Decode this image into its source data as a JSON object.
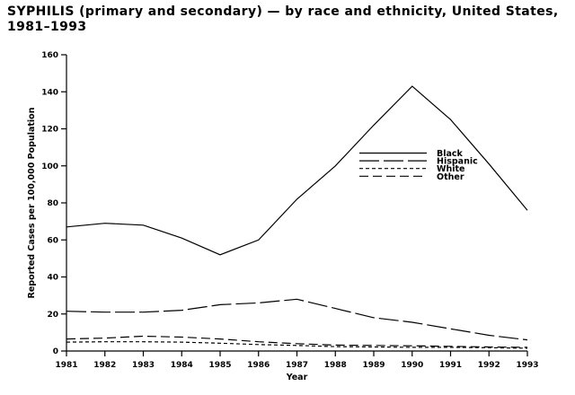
{
  "title": {
    "line1": "SYPHILIS (primary and secondary) — by race and ethnicity, United States,",
    "line2": "1981–1993"
  },
  "chart_data": {
    "type": "line",
    "title": "SYPHILIS (primary and secondary) — by race and ethnicity, United States, 1981–1993",
    "xlabel": "Year",
    "ylabel": "Reported Cases per 100,000 Population",
    "x": [
      1981,
      1982,
      1983,
      1984,
      1985,
      1986,
      1987,
      1988,
      1989,
      1990,
      1991,
      1992,
      1993
    ],
    "series": [
      {
        "name": "Black",
        "style": "solid",
        "values": [
          67,
          69,
          68,
          61,
          52,
          60,
          82,
          100,
          122,
          143,
          125,
          101,
          76
        ]
      },
      {
        "name": "Hispanic",
        "style": "long-dash",
        "values": [
          21.5,
          21,
          21,
          22,
          25,
          26,
          28,
          23,
          18,
          15.5,
          12,
          8.5,
          6
        ]
      },
      {
        "name": "White",
        "style": "short-dash",
        "values": [
          4.8,
          5,
          5,
          4.8,
          4.2,
          3.5,
          3,
          2.4,
          2.2,
          2,
          2,
          1.8,
          1.5
        ]
      },
      {
        "name": "Other",
        "style": "medium-dash",
        "values": [
          6.5,
          7,
          8,
          7.5,
          6.5,
          5,
          4,
          3.2,
          3,
          2.8,
          2.5,
          2.2,
          2
        ]
      }
    ],
    "ylim": [
      0,
      160
    ],
    "y_ticks": [
      0,
      20,
      40,
      60,
      80,
      100,
      120,
      140,
      160
    ],
    "grid": false,
    "legend_position": "inside-upper-right",
    "line_color": "#000000",
    "background_color": "#ffffff"
  }
}
